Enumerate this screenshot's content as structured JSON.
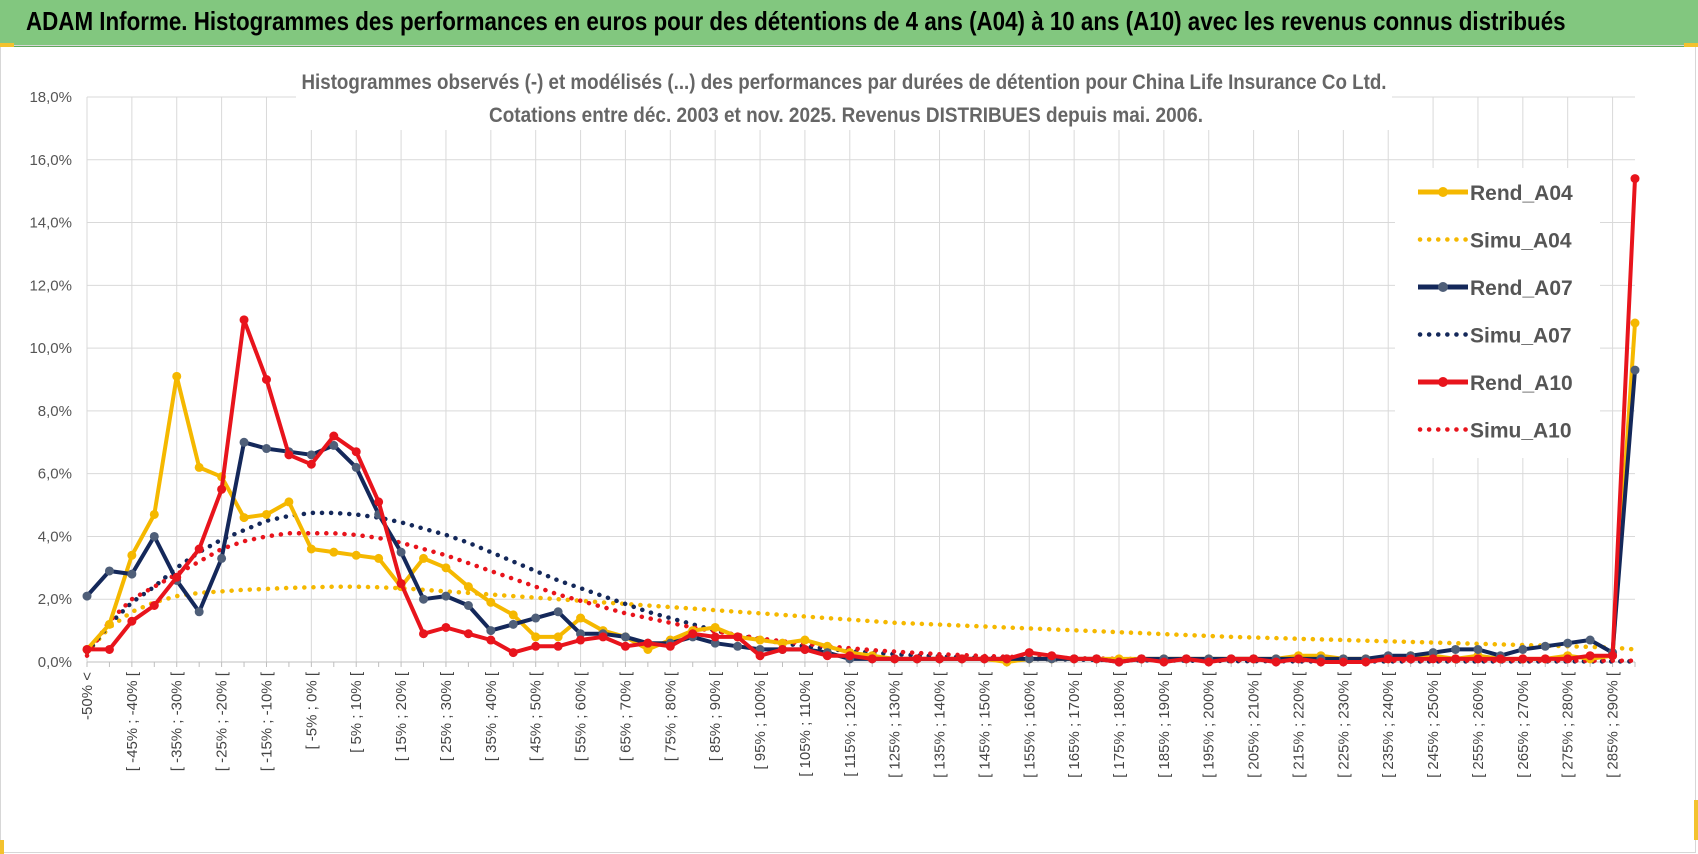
{
  "header": {
    "title": "ADAM Informe. Histogrammes des performances en euros pour des détentions de 4 ans (A04) à 10 ans (A10) avec les revenus connus distribués"
  },
  "chart_data": {
    "type": "line",
    "title_line1": "Histogrammes observés (-) et modélisés (...) des performances par durées de détention pour China Life Insurance Co Ltd.",
    "title_line2": "Cotations entre déc. 2003 et nov. 2025.  Revenus DISTRIBUES depuis mai. 2006.",
    "xlabel": "",
    "ylabel": "",
    "ylim": [
      0,
      18
    ],
    "y_ticks": [
      "0,0%",
      "2,0%",
      "4,0%",
      "6,0%",
      "8,0%",
      "10,0%",
      "12,0%",
      "14,0%",
      "16,0%",
      "18,0%"
    ],
    "grid": true,
    "legend_position": "top-right",
    "categories_count": 70,
    "category_labels": [
      "-50% <",
      "[ -45% ; -40% [",
      "[ -35% ; -30% [",
      "[ -25% ; -20% [",
      "[ -15% ; -10% [",
      "[ -5% ; 0% [",
      "[ 5% ; 10% [",
      "[ 15% ; 20% [",
      "[ 25% ; 30% [",
      "[ 35% ; 40% [",
      "[ 45% ; 50% [",
      "[ 55% ; 60% [",
      "[ 65% ; 70% [",
      "[ 75% ; 80% [",
      "[ 85% ; 90% [",
      "[ 95% ; 100% [",
      "[ 105% ; 110% [",
      "[ 115% ; 120% [",
      "[ 125% ; 130% [",
      "[ 135% ; 140% [",
      "[ 145% ; 150% [",
      "[ 155% ; 160% [",
      "[ 165% ; 170% [",
      "[ 175% ; 180% [",
      "[ 185% ; 190% [",
      "[ 195% ; 200% [",
      "[ 205% ; 210% [",
      "[ 215% ; 220% [",
      "[ 225% ; 230% [",
      "[ 235% ; 240% [",
      "[ 245% ; 250% [",
      "[ 255% ; 260% [",
      "[ 265% ; 270% [",
      "[ 275% ; 280% [",
      "[ 285% ; 290% ["
    ],
    "series": [
      {
        "name": "Rend_A04",
        "style": "solid",
        "color": "#f5b800",
        "values": [
          0.4,
          1.2,
          3.4,
          4.7,
          9.1,
          6.2,
          5.9,
          4.6,
          4.7,
          5.1,
          3.6,
          3.5,
          3.4,
          3.3,
          2.4,
          3.3,
          3.0,
          2.4,
          1.9,
          1.5,
          0.8,
          0.8,
          1.4,
          1.0,
          0.8,
          0.4,
          0.7,
          1.0,
          1.1,
          0.8,
          0.7,
          0.6,
          0.7,
          0.5,
          0.3,
          0.2,
          0.1,
          0.1,
          0.1,
          0.1,
          0.1,
          0.0,
          0.1,
          0.1,
          0.1,
          0.1,
          0.1,
          0.1,
          0.1,
          0.1,
          0.1,
          0.1,
          0.1,
          0.1,
          0.2,
          0.2,
          0.1,
          0.1,
          0.1,
          0.2,
          0.2,
          0.1,
          0.2,
          0.1,
          0.1,
          0.1,
          0.2,
          0.1,
          0.2,
          10.8
        ]
      },
      {
        "name": "Simu_A04",
        "style": "dotted",
        "color": "#f5b800",
        "values": [
          0.3,
          1.1,
          1.6,
          1.9,
          2.1,
          2.2,
          2.25,
          2.3,
          2.33,
          2.36,
          2.38,
          2.4,
          2.4,
          2.38,
          2.35,
          2.3,
          2.25,
          2.2,
          2.15,
          2.1,
          2.05,
          2.0,
          1.95,
          1.9,
          1.85,
          1.8,
          1.75,
          1.7,
          1.65,
          1.6,
          1.55,
          1.5,
          1.45,
          1.4,
          1.35,
          1.3,
          1.25,
          1.22,
          1.19,
          1.16,
          1.13,
          1.1,
          1.07,
          1.04,
          1.01,
          0.98,
          0.95,
          0.92,
          0.89,
          0.86,
          0.83,
          0.8,
          0.78,
          0.76,
          0.74,
          0.72,
          0.7,
          0.68,
          0.66,
          0.64,
          0.62,
          0.6,
          0.58,
          0.56,
          0.54,
          0.52,
          0.5,
          0.48,
          0.46,
          0.4
        ]
      },
      {
        "name": "Rend_A07",
        "style": "solid",
        "color": "#14285a",
        "values": [
          2.1,
          2.9,
          2.8,
          4.0,
          2.6,
          1.6,
          3.3,
          7.0,
          6.8,
          6.7,
          6.6,
          6.9,
          6.2,
          4.7,
          3.5,
          2.0,
          2.1,
          1.8,
          1.0,
          1.2,
          1.4,
          1.6,
          0.9,
          0.9,
          0.8,
          0.6,
          0.6,
          0.8,
          0.6,
          0.5,
          0.4,
          0.4,
          0.4,
          0.3,
          0.1,
          0.1,
          0.1,
          0.1,
          0.1,
          0.1,
          0.1,
          0.1,
          0.1,
          0.1,
          0.1,
          0.1,
          0.0,
          0.1,
          0.1,
          0.1,
          0.1,
          0.1,
          0.1,
          0.1,
          0.1,
          0.1,
          0.1,
          0.1,
          0.2,
          0.2,
          0.3,
          0.4,
          0.4,
          0.2,
          0.4,
          0.5,
          0.6,
          0.7,
          0.3,
          9.3
        ]
      },
      {
        "name": "Simu_A07",
        "style": "dotted",
        "color": "#14285a",
        "values": [
          0.3,
          1.2,
          1.9,
          2.4,
          3.0,
          3.5,
          3.9,
          4.2,
          4.5,
          4.65,
          4.75,
          4.75,
          4.7,
          4.6,
          4.45,
          4.25,
          4.05,
          3.8,
          3.5,
          3.2,
          2.9,
          2.6,
          2.35,
          2.1,
          1.85,
          1.6,
          1.4,
          1.2,
          1.0,
          0.85,
          0.72,
          0.6,
          0.5,
          0.42,
          0.35,
          0.3,
          0.25,
          0.21,
          0.18,
          0.15,
          0.13,
          0.11,
          0.1,
          0.09,
          0.08,
          0.07,
          0.06,
          0.05,
          0.05,
          0.04,
          0.04,
          0.03,
          0.03,
          0.03,
          0.02,
          0.02,
          0.02,
          0.02,
          0.02,
          0.02,
          0.02,
          0.02,
          0.02,
          0.02,
          0.02,
          0.02,
          0.02,
          0.02,
          0.02,
          0.02
        ]
      },
      {
        "name": "Rend_A10",
        "style": "solid",
        "color": "#e8141c",
        "values": [
          0.4,
          0.4,
          1.3,
          1.8,
          2.7,
          3.6,
          5.5,
          10.9,
          9.0,
          6.6,
          6.3,
          7.2,
          6.7,
          5.1,
          2.5,
          0.9,
          1.1,
          0.9,
          0.7,
          0.3,
          0.5,
          0.5,
          0.7,
          0.8,
          0.5,
          0.6,
          0.5,
          0.9,
          0.8,
          0.8,
          0.2,
          0.4,
          0.4,
          0.2,
          0.2,
          0.1,
          0.1,
          0.1,
          0.1,
          0.1,
          0.1,
          0.1,
          0.3,
          0.2,
          0.1,
          0.1,
          0.0,
          0.1,
          0.0,
          0.1,
          0.0,
          0.1,
          0.1,
          0.0,
          0.1,
          0.0,
          0.0,
          0.0,
          0.1,
          0.1,
          0.1,
          0.1,
          0.1,
          0.1,
          0.1,
          0.1,
          0.1,
          0.2,
          0.2,
          15.4
        ]
      },
      {
        "name": "Simu_A10",
        "style": "dotted",
        "color": "#e8141c",
        "values": [
          0.2,
          1.3,
          2.0,
          2.4,
          2.8,
          3.2,
          3.6,
          3.85,
          4.0,
          4.1,
          4.1,
          4.1,
          4.05,
          3.95,
          3.8,
          3.6,
          3.4,
          3.15,
          2.9,
          2.65,
          2.4,
          2.15,
          1.95,
          1.75,
          1.55,
          1.4,
          1.25,
          1.1,
          0.98,
          0.86,
          0.75,
          0.66,
          0.58,
          0.5,
          0.44,
          0.38,
          0.33,
          0.29,
          0.25,
          0.22,
          0.19,
          0.17,
          0.15,
          0.13,
          0.12,
          0.11,
          0.1,
          0.09,
          0.08,
          0.07,
          0.07,
          0.06,
          0.06,
          0.05,
          0.05,
          0.05,
          0.04,
          0.04,
          0.04,
          0.04,
          0.04,
          0.04,
          0.04,
          0.04,
          0.04,
          0.04,
          0.04,
          0.04,
          0.04,
          0.04
        ]
      }
    ]
  }
}
